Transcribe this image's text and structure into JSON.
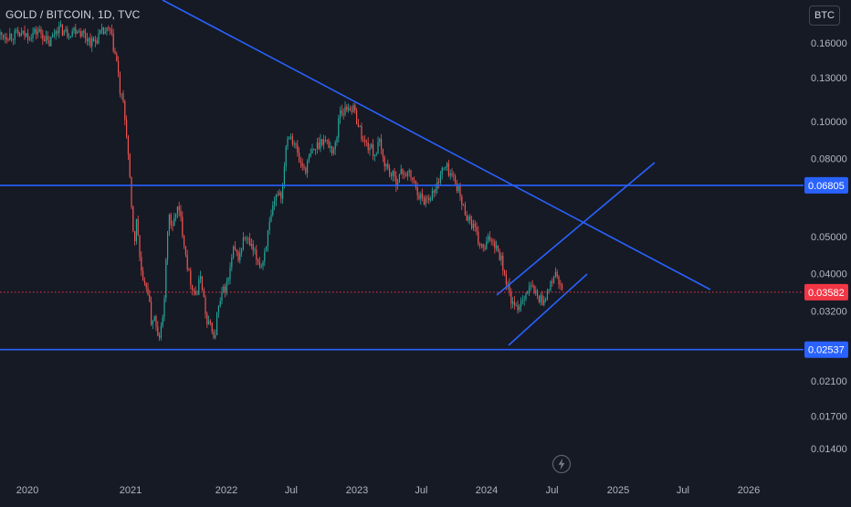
{
  "header": {
    "symbol_title": "GOLD / BITCOIN, 1D, TVC",
    "currency_button": "BTC"
  },
  "colors": {
    "background": "#161a25",
    "candle_up": "#26a69a",
    "candle_down": "#ef5350",
    "trend_line": "#2962ff",
    "price_tag": "#f23645",
    "level_tag": "#2962ff",
    "axis_text": "#b2b5be"
  },
  "icons": {
    "replay": "lightning-icon"
  },
  "chart_data": {
    "type": "candlestick",
    "title": "GOLD / BITCOIN, 1D, TVC",
    "y_scale": "log",
    "y_ticks": [
      "0.16000",
      "0.13000",
      "0.10000",
      "0.08000",
      "0.05000",
      "0.04000",
      "0.03200",
      "0.02100",
      "0.01700",
      "0.01400"
    ],
    "x_ticks": [
      "2020",
      "2021",
      "2022",
      "Jul",
      "2023",
      "Jul",
      "2024",
      "Jul",
      "2025",
      "Jul",
      "2026"
    ],
    "current_price": "0.03582",
    "levels": [
      "0.06805",
      "0.02537"
    ],
    "series": [
      {
        "closes": [
          [
            "2020-01-05",
            0.168
          ],
          [
            "2020-02-10",
            0.172
          ],
          [
            "2020-03-01",
            0.166
          ],
          [
            "2020-03-16",
            0.158
          ],
          [
            "2020-04-15",
            0.176
          ],
          [
            "2020-05-20",
            0.17
          ],
          [
            "2020-06-25",
            0.175
          ],
          [
            "2020-07-20",
            0.168
          ],
          [
            "2020-08-20",
            0.16
          ],
          [
            "2020-09-20",
            0.17
          ],
          [
            "2020-10-20",
            0.172
          ],
          [
            "2020-11-15",
            0.14
          ],
          [
            "2020-11-25",
            0.118
          ],
          [
            "2020-12-05",
            0.112
          ],
          [
            "2020-12-20",
            0.09
          ],
          [
            "2021-01-05",
            0.058
          ],
          [
            "2021-01-15",
            0.048
          ],
          [
            "2021-01-25",
            0.056
          ],
          [
            "2021-02-05",
            0.044
          ],
          [
            "2021-02-20",
            0.036
          ],
          [
            "2021-03-05",
            0.038
          ],
          [
            "2021-03-20",
            0.03
          ],
          [
            "2021-04-01",
            0.031
          ],
          [
            "2021-04-15",
            0.027
          ],
          [
            "2021-04-25",
            0.028
          ],
          [
            "2021-05-05",
            0.031
          ],
          [
            "2021-05-15",
            0.041
          ],
          [
            "2021-05-25",
            0.058
          ],
          [
            "2021-06-10",
            0.052
          ],
          [
            "2021-06-25",
            0.06
          ],
          [
            "2021-07-10",
            0.056
          ],
          [
            "2021-07-25",
            0.048
          ],
          [
            "2021-08-10",
            0.04
          ],
          [
            "2021-08-25",
            0.037
          ],
          [
            "2021-09-10",
            0.035
          ],
          [
            "2021-09-25",
            0.04
          ],
          [
            "2021-10-10",
            0.033
          ],
          [
            "2021-10-20",
            0.029
          ],
          [
            "2021-11-05",
            0.03
          ],
          [
            "2021-11-15",
            0.026
          ],
          [
            "2021-11-25",
            0.031
          ],
          [
            "2021-12-05",
            0.033
          ],
          [
            "2021-12-20",
            0.036
          ],
          [
            "2022-01-05",
            0.038
          ],
          [
            "2022-01-20",
            0.046
          ],
          [
            "2022-02-05",
            0.044
          ],
          [
            "2022-02-20",
            0.05
          ],
          [
            "2022-03-05",
            0.048
          ],
          [
            "2022-03-25",
            0.044
          ],
          [
            "2022-04-10",
            0.042
          ],
          [
            "2022-04-25",
            0.05
          ],
          [
            "2022-05-10",
            0.058
          ],
          [
            "2022-05-25",
            0.066
          ],
          [
            "2022-06-05",
            0.064
          ],
          [
            "2022-06-15",
            0.086
          ],
          [
            "2022-06-25",
            0.094
          ],
          [
            "2022-07-10",
            0.088
          ],
          [
            "2022-07-25",
            0.078
          ],
          [
            "2022-08-10",
            0.075
          ],
          [
            "2022-08-25",
            0.082
          ],
          [
            "2022-09-10",
            0.086
          ],
          [
            "2022-09-25",
            0.09
          ],
          [
            "2022-10-10",
            0.088
          ],
          [
            "2022-10-25",
            0.084
          ],
          [
            "2022-11-05",
            0.088
          ],
          [
            "2022-11-12",
            0.108
          ],
          [
            "2022-11-25",
            0.106
          ],
          [
            "2022-12-10",
            0.11
          ],
          [
            "2022-12-25",
            0.106
          ],
          [
            "2023-01-05",
            0.098
          ],
          [
            "2023-01-20",
            0.088
          ],
          [
            "2023-02-05",
            0.086
          ],
          [
            "2023-02-20",
            0.082
          ],
          [
            "2023-03-05",
            0.088
          ],
          [
            "2023-03-15",
            0.08
          ],
          [
            "2023-04-01",
            0.074
          ],
          [
            "2023-04-20",
            0.07
          ],
          [
            "2023-05-10",
            0.074
          ],
          [
            "2023-06-01",
            0.072
          ],
          [
            "2023-06-20",
            0.066
          ],
          [
            "2023-07-05",
            0.062
          ],
          [
            "2023-07-25",
            0.064
          ],
          [
            "2023-08-10",
            0.066
          ],
          [
            "2023-08-25",
            0.074
          ],
          [
            "2023-09-10",
            0.076
          ],
          [
            "2023-09-25",
            0.072
          ],
          [
            "2023-10-10",
            0.068
          ],
          [
            "2023-10-25",
            0.06
          ],
          [
            "2023-11-10",
            0.056
          ],
          [
            "2023-11-25",
            0.053
          ],
          [
            "2023-12-10",
            0.048
          ],
          [
            "2023-12-25",
            0.046
          ],
          [
            "2024-01-10",
            0.05
          ],
          [
            "2024-01-25",
            0.048
          ],
          [
            "2024-02-10",
            0.044
          ],
          [
            "2024-02-25",
            0.038
          ],
          [
            "2024-03-10",
            0.034
          ],
          [
            "2024-03-20",
            0.032
          ],
          [
            "2024-04-05",
            0.034
          ],
          [
            "2024-04-20",
            0.036
          ],
          [
            "2024-05-05",
            0.037
          ],
          [
            "2024-05-20",
            0.035
          ],
          [
            "2024-06-05",
            0.034
          ],
          [
            "2024-06-20",
            0.036
          ],
          [
            "2024-07-01",
            0.038
          ],
          [
            "2024-07-10",
            0.041
          ],
          [
            "2024-07-20",
            0.037
          ],
          [
            "2024-08-01",
            0.0358
          ]
        ]
      }
    ]
  }
}
